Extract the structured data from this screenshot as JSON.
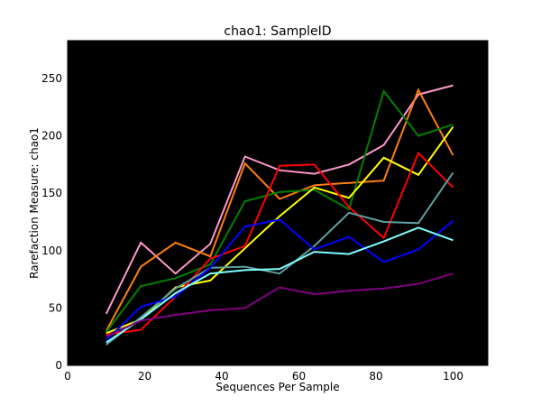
{
  "chart_data": {
    "type": "line",
    "title": "chao1: SampleID",
    "xlabel": "Sequences Per Sample",
    "ylabel": "Rarefaction Measure: chao1",
    "xlim": [
      0,
      109
    ],
    "ylim": [
      0,
      283
    ],
    "xticks": [
      0,
      20,
      40,
      60,
      80,
      100
    ],
    "yticks": [
      0,
      50,
      100,
      150,
      200,
      250
    ],
    "background": "#000000",
    "grid": false,
    "legend": "none",
    "x": [
      10,
      19,
      28,
      37,
      46,
      55,
      64,
      73,
      82,
      91,
      100
    ],
    "series": [
      {
        "color": "#ff99cc",
        "values": [
          45,
          107,
          80,
          106,
          182,
          170,
          167,
          175,
          192,
          236,
          244
        ]
      },
      {
        "color": "#ff7f0e",
        "values": [
          30,
          86,
          107,
          95,
          176,
          145,
          157,
          159,
          161,
          240,
          183
        ]
      },
      {
        "color": "#008000",
        "values": [
          29,
          69,
          76,
          88,
          143,
          151,
          153,
          136,
          239,
          200,
          210
        ]
      },
      {
        "color": "#ffff00",
        "values": [
          28,
          40,
          68,
          74,
          102,
          130,
          155,
          146,
          181,
          166,
          208
        ]
      },
      {
        "color": "#ff0000",
        "values": [
          27,
          31,
          60,
          93,
          104,
          174,
          175,
          138,
          111,
          185,
          155
        ]
      },
      {
        "color": "#5f9ea0",
        "values": [
          18,
          42,
          67,
          85,
          86,
          80,
          104,
          133,
          125,
          124,
          168
        ]
      },
      {
        "color": "#0000ff",
        "values": [
          22,
          51,
          60,
          85,
          121,
          127,
          101,
          112,
          90,
          101,
          126
        ]
      },
      {
        "color": "#7fffff",
        "values": [
          20,
          40,
          63,
          80,
          83,
          84,
          99,
          97,
          108,
          120,
          109
        ]
      },
      {
        "color": "#800080",
        "values": [
          25,
          39,
          44,
          48,
          50,
          68,
          62,
          65,
          67,
          71,
          80
        ]
      }
    ]
  }
}
